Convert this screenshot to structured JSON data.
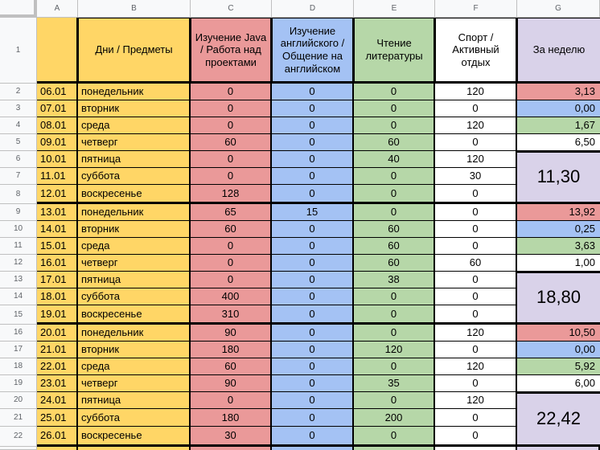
{
  "column_letters": [
    "A",
    "B",
    "C",
    "D",
    "E",
    "F",
    "G"
  ],
  "colors": {
    "yellow": "#ffd666",
    "red": "#ea9999",
    "blue": "#a4c2f4",
    "green": "#b6d7a8",
    "purple": "#d9d2e9",
    "white": "#ffffff",
    "header_gray": "#f8f9fa",
    "grid": "#c0c0c0"
  },
  "header": {
    "row_number": "1",
    "days_subjects": "Дни / Предметы",
    "java": "Изучение Java / Работа над проектами",
    "english": "Изучение английского  / Общение на английском",
    "reading": "Чтение литературы",
    "sport": "Спорт / Активный отдых",
    "week": "За неделю"
  },
  "rows": [
    {
      "n": "2",
      "date": "06.01",
      "day": "понедельник",
      "java": "0",
      "english": "0",
      "reading": "0",
      "sport": "120",
      "g": "3,13"
    },
    {
      "n": "3",
      "date": "07.01",
      "day": "вторник",
      "java": "0",
      "english": "0",
      "reading": "0",
      "sport": "0",
      "g": "0,00"
    },
    {
      "n": "4",
      "date": "08.01",
      "day": "среда",
      "java": "0",
      "english": "0",
      "reading": "0",
      "sport": "120",
      "g": "1,67"
    },
    {
      "n": "5",
      "date": "09.01",
      "day": "четверг",
      "java": "60",
      "english": "0",
      "reading": "60",
      "sport": "0",
      "g": "6,50"
    },
    {
      "n": "6",
      "date": "10.01",
      "day": "пятница",
      "java": "0",
      "english": "0",
      "reading": "40",
      "sport": "120"
    },
    {
      "n": "7",
      "date": "11.01",
      "day": "суббота",
      "java": "0",
      "english": "0",
      "reading": "0",
      "sport": "30"
    },
    {
      "n": "8",
      "date": "12.01",
      "day": "воскресенье",
      "java": "128",
      "english": "0",
      "reading": "0",
      "sport": "0"
    },
    {
      "n": "9",
      "date": "13.01",
      "day": "понедельник",
      "java": "65",
      "english": "15",
      "reading": "0",
      "sport": "0",
      "g": "13,92"
    },
    {
      "n": "10",
      "date": "14.01",
      "day": "вторник",
      "java": "60",
      "english": "0",
      "reading": "60",
      "sport": "0",
      "g": "0,25"
    },
    {
      "n": "11",
      "date": "15.01",
      "day": "среда",
      "java": "0",
      "english": "0",
      "reading": "60",
      "sport": "0",
      "g": "3,63"
    },
    {
      "n": "12",
      "date": "16.01",
      "day": "четверг",
      "java": "0",
      "english": "0",
      "reading": "60",
      "sport": "60",
      "g": "1,00"
    },
    {
      "n": "13",
      "date": "17.01",
      "day": "пятница",
      "java": "0",
      "english": "0",
      "reading": "38",
      "sport": "0"
    },
    {
      "n": "14",
      "date": "18.01",
      "day": "суббота",
      "java": "400",
      "english": "0",
      "reading": "0",
      "sport": "0"
    },
    {
      "n": "15",
      "date": "19.01",
      "day": "воскресенье",
      "java": "310",
      "english": "0",
      "reading": "0",
      "sport": "0"
    },
    {
      "n": "16",
      "date": "20.01",
      "day": "понедельник",
      "java": "90",
      "english": "0",
      "reading": "0",
      "sport": "120",
      "g": "10,50"
    },
    {
      "n": "17",
      "date": "21.01",
      "day": "вторник",
      "java": "180",
      "english": "0",
      "reading": "120",
      "sport": "0",
      "g": "0,00"
    },
    {
      "n": "18",
      "date": "22.01",
      "day": "среда",
      "java": "60",
      "english": "0",
      "reading": "0",
      "sport": "120",
      "g": "5,92"
    },
    {
      "n": "19",
      "date": "23.01",
      "day": "четверг",
      "java": "90",
      "english": "0",
      "reading": "35",
      "sport": "0",
      "g": "6,00"
    },
    {
      "n": "20",
      "date": "24.01",
      "day": "пятница",
      "java": "0",
      "english": "0",
      "reading": "0",
      "sport": "120"
    },
    {
      "n": "21",
      "date": "25.01",
      "day": "суббота",
      "java": "180",
      "english": "0",
      "reading": "200",
      "sport": "0"
    },
    {
      "n": "22",
      "date": "26.01",
      "day": "воскресенье",
      "java": "30",
      "english": "0",
      "reading": "0",
      "sport": "0"
    }
  ],
  "week_totals": [
    "11,30",
    "18,80",
    "22,42"
  ]
}
